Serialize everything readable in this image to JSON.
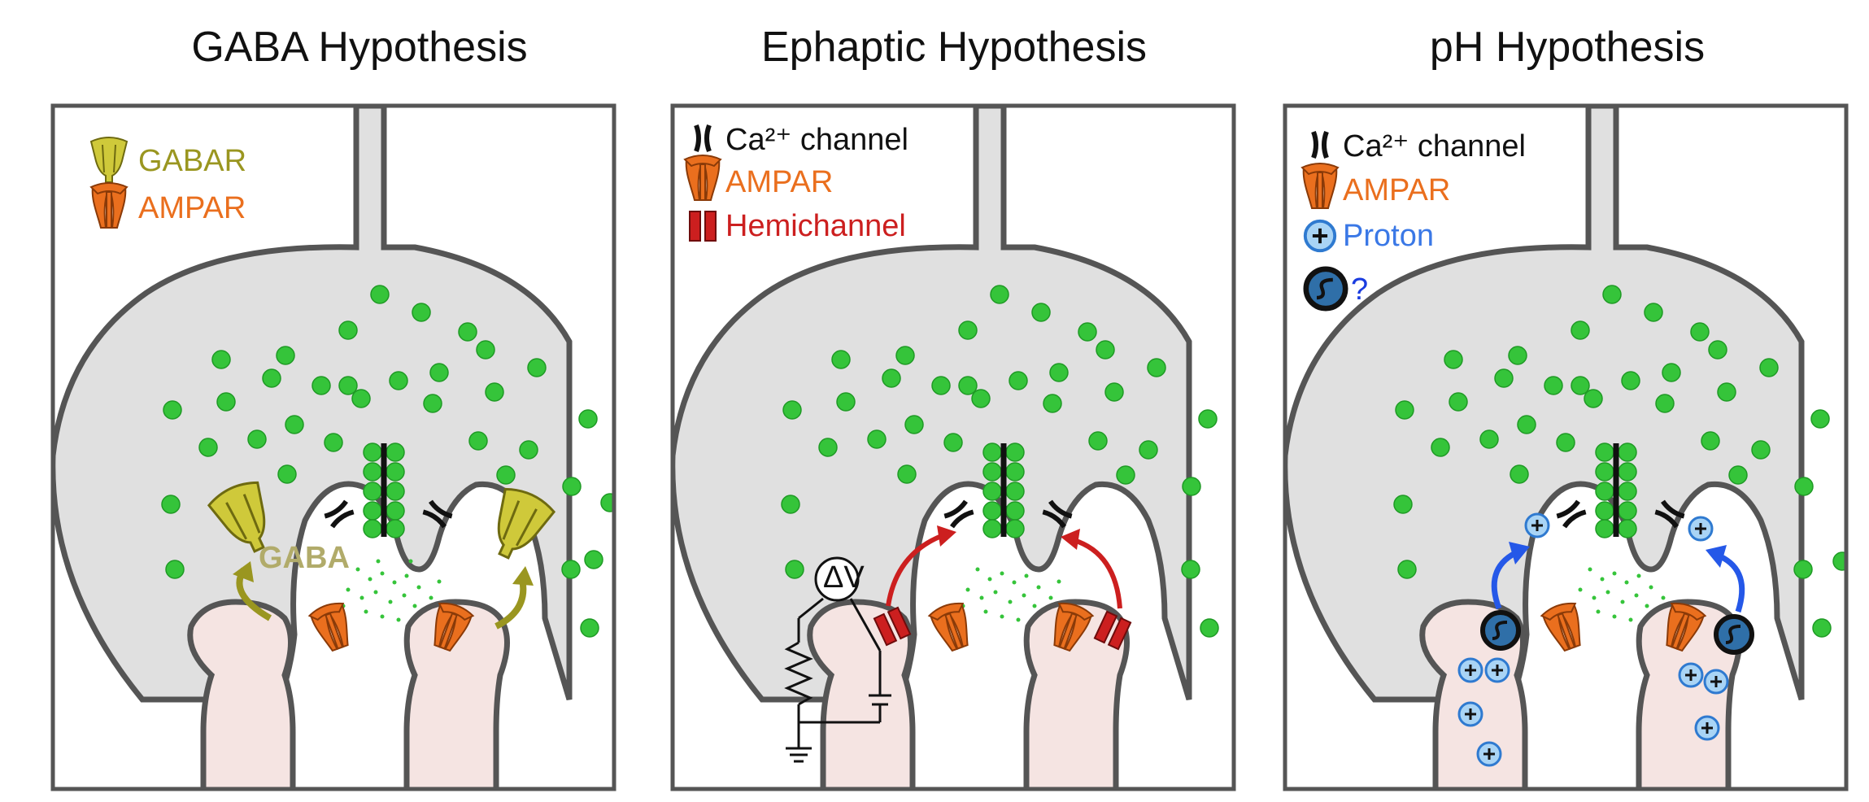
{
  "panels": [
    {
      "title": "GABA Hypothesis",
      "legend": [
        {
          "icon": "gabar-receptor-icon",
          "label": "GABAR",
          "color": "#9a9620"
        },
        {
          "icon": "ampar-receptor-icon",
          "label": "AMPAR",
          "color": "#ea6f1e"
        }
      ],
      "annotation": "GABA"
    },
    {
      "title": "Ephaptic Hypothesis",
      "legend": [
        {
          "icon": "calcium-channel-icon",
          "label": "Ca²⁺ channel",
          "color": "#111111"
        },
        {
          "icon": "ampar-receptor-icon",
          "label": "AMPAR",
          "color": "#ea6f1e"
        },
        {
          "icon": "hemichannel-icon",
          "label": "Hemichannel",
          "color": "#cc1f1f"
        }
      ],
      "annotation": "ΔV"
    },
    {
      "title": "pH Hypothesis",
      "legend": [
        {
          "icon": "calcium-channel-icon",
          "label": "Ca²⁺ channel",
          "color": "#111111"
        },
        {
          "icon": "ampar-receptor-icon",
          "label": "AMPAR",
          "color": "#ea6f1e"
        },
        {
          "icon": "proton-icon",
          "label": "Proton",
          "color": "#3a78e6"
        },
        {
          "icon": "exchanger-icon",
          "label": "?",
          "color": "#1a3ce0"
        }
      ],
      "proton_symbol": "+"
    }
  ],
  "colors": {
    "terminal_fill": "#e0e0e0",
    "outline": "#555555",
    "vesicle": "#35c43a",
    "dendrite_fill": "#f5e4e2",
    "gaba_arrow": "#9a9620",
    "ephaptic_arrow": "#cc1f1f",
    "ph_arrow": "#2558e8",
    "proton_fill": "#a9d4f5"
  }
}
